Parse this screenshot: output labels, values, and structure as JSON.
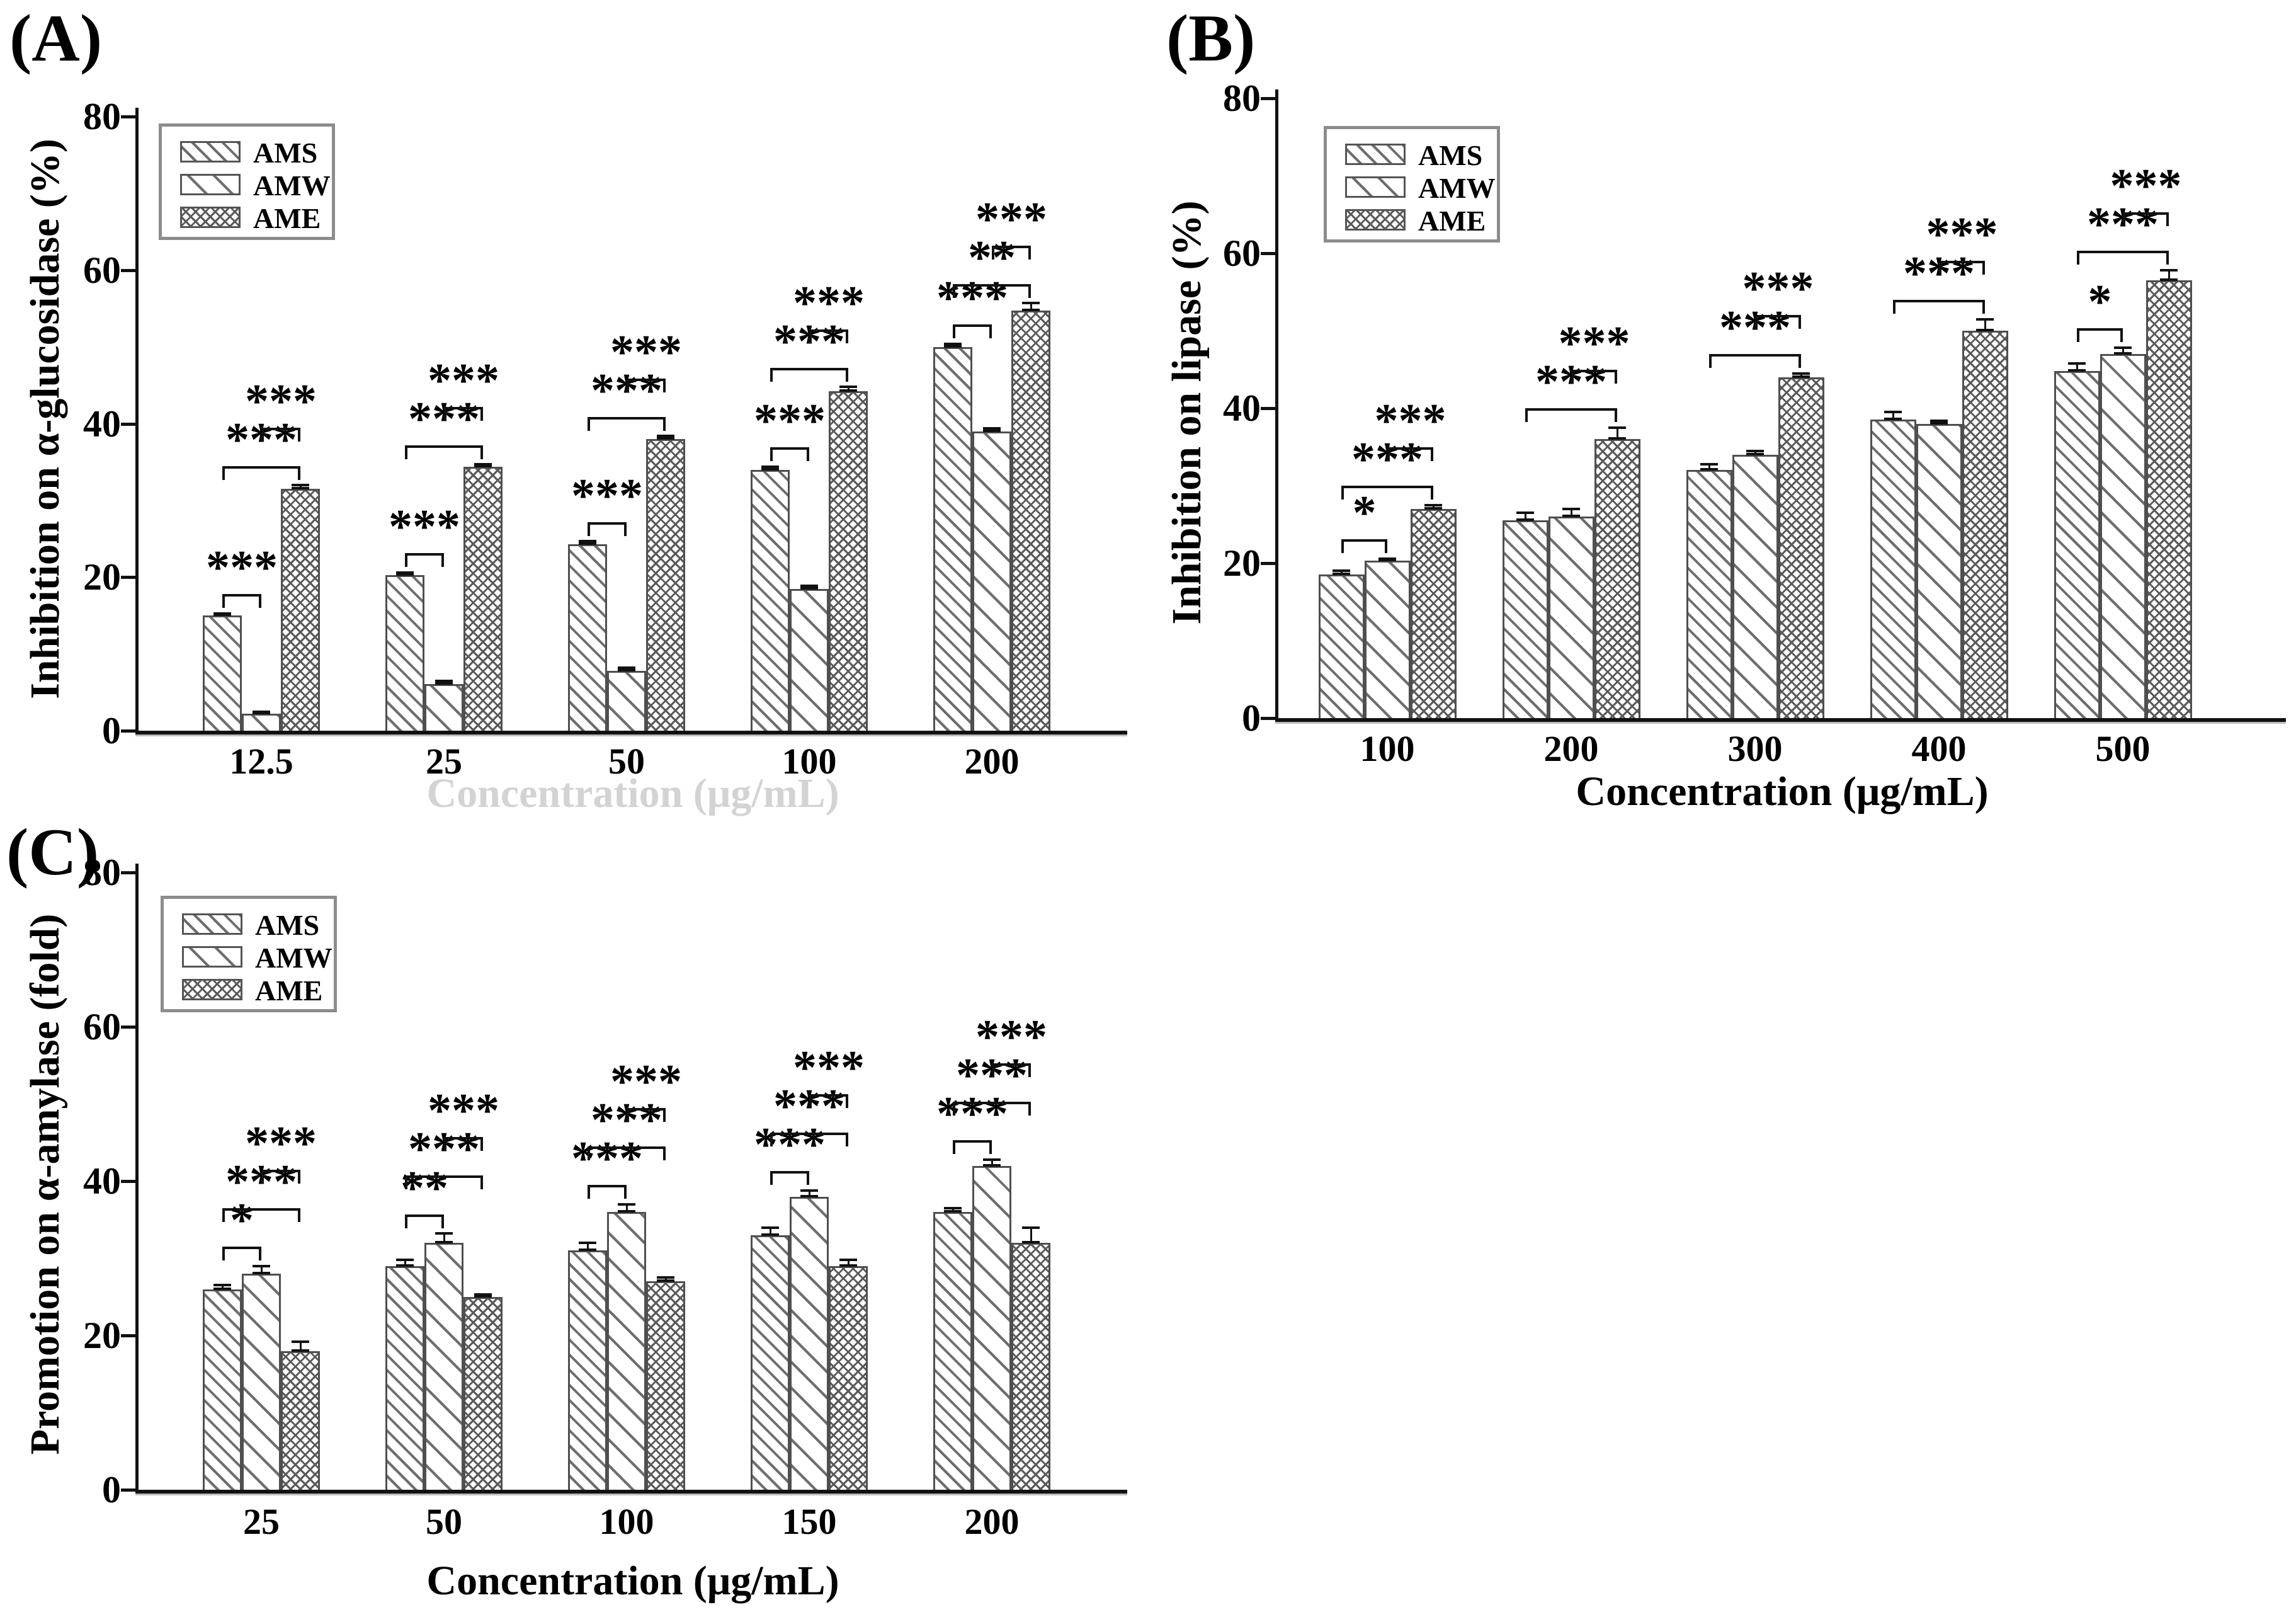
{
  "figure": {
    "background": "#ffffff",
    "text_color": "#000000",
    "axis_color": "#111111",
    "hatch_color": "#6e6e6e",
    "series_labels": [
      "AMS",
      "AMW",
      "AME"
    ]
  },
  "chart_data": [
    {
      "id": "A",
      "panel_label": "(A)",
      "type": "bar",
      "title": "",
      "ylabel": "Inhibition on α-glucosidase (%)",
      "xlabel": "Concentration (μg/mL)",
      "xlabel_faint": true,
      "ylim": [
        0,
        80
      ],
      "yticks": [
        "0",
        "20",
        "40",
        "60",
        "80"
      ],
      "grid": false,
      "legend_position": "upper-left",
      "categories": [
        "12.5",
        "25",
        "50",
        "100",
        "200"
      ],
      "series": [
        {
          "name": "AMS",
          "values": [
            15.0,
            20.3,
            24.3,
            34.0,
            50.0
          ],
          "errors": [
            0.3,
            0.3,
            0.4,
            0.4,
            0.4
          ]
        },
        {
          "name": "AMW",
          "values": [
            2.2,
            6.1,
            7.8,
            18.5,
            39.0
          ],
          "errors": [
            0.3,
            0.4,
            0.4,
            0.4,
            0.4
          ]
        },
        {
          "name": "AME",
          "values": [
            31.5,
            34.4,
            38.0,
            44.2,
            54.7
          ],
          "errors": [
            0.5,
            0.3,
            0.4,
            0.6,
            1.0
          ]
        }
      ],
      "significance": [
        {
          "category": "12.5",
          "pairs": [
            {
              "a": "AMS",
              "b": "AMW",
              "label": "***"
            },
            {
              "a": "AMS",
              "b": "AME",
              "label": "***"
            },
            {
              "a": "AMW",
              "b": "AME",
              "label": "***"
            }
          ]
        },
        {
          "category": "25",
          "pairs": [
            {
              "a": "AMS",
              "b": "AMW",
              "label": "***"
            },
            {
              "a": "AMS",
              "b": "AME",
              "label": "***"
            },
            {
              "a": "AMW",
              "b": "AME",
              "label": "***"
            }
          ]
        },
        {
          "category": "50",
          "pairs": [
            {
              "a": "AMS",
              "b": "AMW",
              "label": "***"
            },
            {
              "a": "AMS",
              "b": "AME",
              "label": "***"
            },
            {
              "a": "AMW",
              "b": "AME",
              "label": "***"
            }
          ]
        },
        {
          "category": "100",
          "pairs": [
            {
              "a": "AMS",
              "b": "AMW",
              "label": "***"
            },
            {
              "a": "AMS",
              "b": "AME",
              "label": "***"
            },
            {
              "a": "AMW",
              "b": "AME",
              "label": "***"
            }
          ]
        },
        {
          "category": "200",
          "pairs": [
            {
              "a": "AMS",
              "b": "AMW",
              "label": "***"
            },
            {
              "a": "AMS",
              "b": "AME",
              "label": "**"
            },
            {
              "a": "AMW",
              "b": "AME",
              "label": "***"
            }
          ]
        }
      ]
    },
    {
      "id": "B",
      "panel_label": "(B)",
      "type": "bar",
      "title": "",
      "ylabel": "Inhibition on lipase (%)",
      "xlabel": "Concentration (μg/mL)",
      "xlabel_faint": false,
      "ylim": [
        0,
        80
      ],
      "yticks": [
        "0",
        "20",
        "40",
        "60",
        "80"
      ],
      "grid": false,
      "legend_position": "upper-left",
      "categories": [
        "100",
        "200",
        "300",
        "400",
        "500"
      ],
      "series": [
        {
          "name": "AMS",
          "values": [
            18.5,
            25.5,
            32.0,
            38.5,
            44.8
          ],
          "errors": [
            0.5,
            1.0,
            0.8,
            1.0,
            1.0
          ]
        },
        {
          "name": "AMW",
          "values": [
            20.3,
            26.0,
            34.0,
            38.0,
            47.0
          ],
          "errors": [
            0.3,
            1.0,
            0.5,
            0.4,
            0.8
          ]
        },
        {
          "name": "AME",
          "values": [
            27.0,
            36.0,
            44.0,
            50.0,
            56.5
          ],
          "errors": [
            0.5,
            1.5,
            0.5,
            1.5,
            1.3
          ]
        }
      ],
      "significance": [
        {
          "category": "100",
          "pairs": [
            {
              "a": "AMS",
              "b": "AMW",
              "label": "*"
            },
            {
              "a": "AMS",
              "b": "AME",
              "label": "***"
            },
            {
              "a": "AMW",
              "b": "AME",
              "label": "***"
            }
          ]
        },
        {
          "category": "200",
          "pairs": [
            {
              "a": "AMS",
              "b": "AME",
              "label": "***"
            },
            {
              "a": "AMW",
              "b": "AME",
              "label": "***"
            }
          ]
        },
        {
          "category": "300",
          "pairs": [
            {
              "a": "AMS",
              "b": "AME",
              "label": "***"
            },
            {
              "a": "AMW",
              "b": "AME",
              "label": "***"
            }
          ]
        },
        {
          "category": "400",
          "pairs": [
            {
              "a": "AMS",
              "b": "AME",
              "label": "***"
            },
            {
              "a": "AMW",
              "b": "AME",
              "label": "***"
            }
          ]
        },
        {
          "category": "500",
          "pairs": [
            {
              "a": "AMS",
              "b": "AMW",
              "label": "*"
            },
            {
              "a": "AMS",
              "b": "AME",
              "label": "***"
            },
            {
              "a": "AMW",
              "b": "AME",
              "label": "***"
            }
          ]
        }
      ]
    },
    {
      "id": "C",
      "panel_label": "(C)",
      "type": "bar",
      "title": "",
      "ylabel": "Promotion on α-amylase (fold)",
      "xlabel": "Concentration (μg/mL)",
      "xlabel_faint": false,
      "ylim": [
        0,
        80
      ],
      "yticks": [
        "0",
        "20",
        "40",
        "60",
        "80"
      ],
      "grid": false,
      "legend_position": "upper-left",
      "categories": [
        "25",
        "50",
        "100",
        "150",
        "200"
      ],
      "series": [
        {
          "name": "AMS",
          "values": [
            26.0,
            29.0,
            31.0,
            33.0,
            36.0
          ],
          "errors": [
            0.5,
            0.8,
            1.0,
            1.0,
            0.5
          ]
        },
        {
          "name": "AMW",
          "values": [
            28.0,
            32.0,
            36.0,
            38.0,
            42.0
          ],
          "errors": [
            1.0,
            1.2,
            1.0,
            0.8,
            0.8
          ]
        },
        {
          "name": "AME",
          "values": [
            18.0,
            25.0,
            27.0,
            29.0,
            32.0
          ],
          "errors": [
            1.2,
            0.3,
            0.5,
            0.8,
            2.0
          ]
        }
      ],
      "significance": [
        {
          "category": "25",
          "pairs": [
            {
              "a": "AMS",
              "b": "AMW",
              "label": "*"
            },
            {
              "a": "AMS",
              "b": "AME",
              "label": "***"
            },
            {
              "a": "AMW",
              "b": "AME",
              "label": "***"
            }
          ]
        },
        {
          "category": "50",
          "pairs": [
            {
              "a": "AMS",
              "b": "AMW",
              "label": "**"
            },
            {
              "a": "AMS",
              "b": "AME",
              "label": "***"
            },
            {
              "a": "AMW",
              "b": "AME",
              "label": "***"
            }
          ]
        },
        {
          "category": "100",
          "pairs": [
            {
              "a": "AMS",
              "b": "AMW",
              "label": "***"
            },
            {
              "a": "AMS",
              "b": "AME",
              "label": "***"
            },
            {
              "a": "AMW",
              "b": "AME",
              "label": "***"
            }
          ]
        },
        {
          "category": "150",
          "pairs": [
            {
              "a": "AMS",
              "b": "AMW",
              "label": "***"
            },
            {
              "a": "AMS",
              "b": "AME",
              "label": "***"
            },
            {
              "a": "AMW",
              "b": "AME",
              "label": "***"
            }
          ]
        },
        {
          "category": "200",
          "pairs": [
            {
              "a": "AMS",
              "b": "AMW",
              "label": "***"
            },
            {
              "a": "AMS",
              "b": "AME",
              "label": "***"
            },
            {
              "a": "AMW",
              "b": "AME",
              "label": "***"
            }
          ]
        }
      ]
    }
  ]
}
